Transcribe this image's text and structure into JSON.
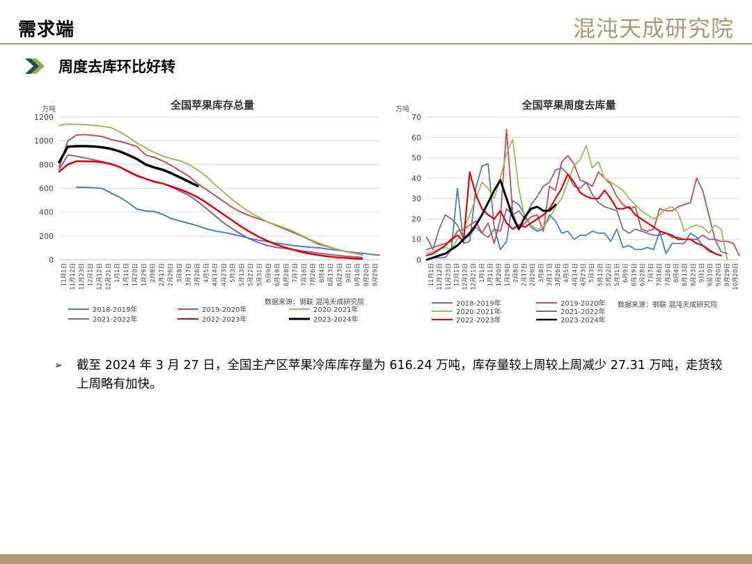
{
  "header": {
    "title": "需求端",
    "logo": "混沌天成研究院"
  },
  "section": {
    "title": "周度去库环比好转"
  },
  "note": {
    "bullet": "➢",
    "text": "截至 2024 年 3 月 27 日，全国主产区苹果冷库库存量为 616.24 万吨，库存量较上周较上周减少 27.31 万吨，走货较上周略有加快。"
  },
  "colors": {
    "accent": "#b39672",
    "s2018": "#4a7ebb",
    "s2019": "#c0504d",
    "s2020": "#9bbb59",
    "s2021": "#8064a2",
    "s2022": "#e00000",
    "s2023": "#000000"
  },
  "chart_data": [
    {
      "type": "line",
      "title": "全国苹果库存总量",
      "unit": "万吨",
      "source": "数据来源：钢联  混沌天成研究院",
      "ylim": [
        0,
        1200
      ],
      "yticks": [
        "0",
        "200",
        "400",
        "600",
        "800",
        "1000",
        "1200"
      ],
      "xticks": [
        "11月1日",
        "11月12日",
        "11月23日",
        "12月1日",
        "12月12日",
        "12月21日",
        "1月1日",
        "1月11日",
        "1月20日",
        "1月29日",
        "2月8日",
        "2月17日",
        "2月26日",
        "3月8日",
        "3月17日",
        "3月26日",
        "4月5日",
        "4月14日",
        "4月23日",
        "5月3日",
        "5月13日",
        "5月22日",
        "5月31日",
        "6月9日",
        "6月19日",
        "6月28日",
        "7月7日",
        "7月16日",
        "7月26日",
        "8月4日",
        "8月13日",
        "8月23日",
        "9月1日",
        "9月10日",
        "9月20日",
        "9月29日"
      ],
      "series": [
        {
          "name": "2018-2019年",
          "color": "#4a7ebb",
          "width": 2,
          "start": 2,
          "values": [
            608,
            608,
            605,
            598,
            560,
            525,
            478,
            425,
            410,
            405,
            380,
            345,
            325,
            305,
            285,
            260,
            242,
            230,
            215,
            198,
            180,
            165,
            152,
            140,
            130,
            120,
            112,
            105,
            100,
            90,
            82,
            72,
            62,
            55,
            45,
            38
          ]
        },
        {
          "name": "2019-2020年",
          "color": "#c0504d",
          "width": 2,
          "start": 0,
          "values": [
            780,
            1000,
            1048,
            1052,
            1045,
            1035,
            1010,
            995,
            975,
            950,
            880,
            860,
            830,
            790,
            745,
            700,
            640,
            590,
            540,
            490,
            440,
            400,
            370,
            345,
            320,
            290,
            260,
            230,
            200,
            165,
            130,
            110,
            90,
            70,
            55,
            40
          ]
        },
        {
          "name": "2020-2021年",
          "color": "#9bbb59",
          "width": 2,
          "start": 0,
          "values": [
            1130,
            1140,
            1138,
            1135,
            1130,
            1122,
            1110,
            1075,
            1030,
            980,
            940,
            900,
            870,
            850,
            830,
            800,
            755,
            700,
            630,
            570,
            505,
            450,
            400,
            360,
            320,
            295,
            270,
            240,
            205,
            170,
            140,
            115,
            90,
            70,
            55,
            42
          ]
        },
        {
          "name": "2021-2022年",
          "color": "#8064a2",
          "width": 2,
          "start": 0,
          "values": [
            760,
            880,
            870,
            855,
            840,
            825,
            800,
            780,
            745,
            710,
            680,
            660,
            640,
            610,
            575,
            540,
            490,
            430,
            370,
            310,
            260,
            215,
            175,
            145,
            120,
            105,
            95,
            85,
            75,
            65,
            55,
            45,
            38,
            30,
            25,
            20
          ]
        },
        {
          "name": "2022-2023年",
          "color": "#e00000",
          "width": 2.5,
          "start": 0,
          "values": [
            740,
            800,
            828,
            828,
            826,
            818,
            805,
            780,
            740,
            705,
            680,
            655,
            640,
            615,
            590,
            560,
            525,
            480,
            430,
            380,
            330,
            280,
            235,
            195,
            160,
            130,
            105,
            85,
            65,
            50,
            38,
            28,
            20,
            15,
            10,
            7
          ]
        },
        {
          "name": "2023-2024年",
          "color": "#000000",
          "width": 3.5,
          "start": 0,
          "values": [
            820,
            950,
            955,
            955,
            952,
            945,
            932,
            910,
            880,
            845,
            800,
            775,
            755,
            725,
            690,
            655,
            620
          ]
        }
      ]
    },
    {
      "type": "line",
      "title": "全国苹果周度去库量",
      "unit": "万吨",
      "source": "数据来源：钢联  混沌天成研究院",
      "ylim": [
        0,
        70
      ],
      "yticks": [
        "0",
        "10",
        "20",
        "30",
        "40",
        "50",
        "60",
        "70"
      ],
      "xticks": [
        "11月1日",
        "11月12日",
        "11月23日",
        "12月1日",
        "12月12日",
        "12月21日",
        "1月1日",
        "1月11日",
        "1月20日",
        "1月29日",
        "2月8日",
        "2月17日",
        "2月26日",
        "3月8日",
        "3月17日",
        "3月26日",
        "4月5日",
        "4月14日",
        "4月23日",
        "5月3日",
        "5月13日",
        "5月22日",
        "5月31日",
        "6月9日",
        "6月19日",
        "6月28日",
        "7月7日",
        "7月16日",
        "7月26日",
        "8月4日",
        "8月13日",
        "8月23日",
        "9月1日",
        "9月10日",
        "9月20日",
        "9月29日",
        "10月20日"
      ],
      "series": [
        {
          "name": "2018-2019年",
          "color": "#4a7ebb",
          "width": 1.8,
          "start": 1,
          "values": [
            1,
            1,
            1,
            5,
            35,
            8,
            9,
            35,
            46,
            47,
            16,
            5,
            9,
            29,
            27,
            22,
            16,
            14,
            15,
            22,
            19,
            13,
            14,
            10,
            12,
            12,
            14,
            13,
            13,
            9,
            15,
            6,
            7,
            5,
            5,
            6,
            5,
            14,
            3,
            8,
            8,
            8,
            13,
            11,
            7,
            4,
            3,
            2
          ]
        },
        {
          "name": "2019-2020年",
          "color": "#c0504d",
          "width": 1.8,
          "start": 0,
          "values": [
            5,
            6,
            7,
            8,
            9,
            14,
            15,
            17,
            19,
            13,
            18,
            8,
            20,
            64,
            23,
            15,
            18,
            21,
            22,
            14,
            36,
            34,
            48,
            51,
            47,
            39,
            38,
            36,
            43,
            40,
            37,
            31,
            27,
            25,
            26,
            15,
            14,
            15,
            25,
            24,
            24,
            26,
            27,
            28,
            40,
            34,
            22,
            10,
            9,
            9,
            8,
            2
          ]
        },
        {
          "name": "2020-2021年",
          "color": "#9bbb59",
          "width": 1.8,
          "start": 0,
          "values": [
            3,
            4,
            5,
            6,
            5,
            10,
            15,
            22,
            30,
            38,
            35,
            30,
            40,
            52,
            59,
            35,
            20,
            17,
            15,
            16,
            20,
            26,
            30,
            38,
            46,
            49,
            56,
            45,
            48,
            40,
            38,
            36,
            34,
            30,
            27,
            24,
            22,
            20,
            22,
            25,
            26,
            23,
            14,
            16,
            17,
            16,
            13,
            17,
            15,
            0
          ]
        },
        {
          "name": "2021-2022年",
          "color": "#8064a2",
          "width": 1.8,
          "start": 0,
          "values": [
            11,
            5,
            15,
            22,
            20,
            17,
            10,
            12,
            16,
            13,
            11,
            15,
            14,
            25,
            22,
            24,
            20,
            27,
            31,
            36,
            38,
            44,
            45,
            42,
            36,
            35,
            38,
            32,
            28,
            26,
            25,
            24,
            15,
            13,
            15,
            14,
            13,
            12,
            12,
            13,
            11,
            11,
            10,
            10,
            10,
            12,
            10,
            10,
            4,
            3
          ]
        },
        {
          "name": "2022-2023年",
          "color": "#e00000",
          "width": 2.2,
          "start": 0,
          "values": [
            2,
            3,
            5,
            7,
            10,
            12,
            9,
            43,
            32,
            25,
            22,
            20,
            24,
            18,
            15,
            17,
            16,
            18,
            20,
            22,
            25,
            30,
            35,
            42,
            38,
            33,
            31,
            30,
            30,
            34,
            30,
            25,
            25,
            26,
            22,
            20,
            18,
            16,
            14,
            13,
            12,
            10,
            10,
            10,
            8,
            7,
            5,
            3,
            2
          ]
        },
        {
          "name": "2023-2024年",
          "color": "#000000",
          "width": 3,
          "start": 0,
          "values": [
            0,
            1,
            2,
            3,
            5,
            7,
            10,
            13,
            17,
            22,
            28,
            34,
            39,
            30,
            21,
            15,
            21,
            25,
            26,
            24,
            24,
            27
          ]
        }
      ]
    }
  ]
}
